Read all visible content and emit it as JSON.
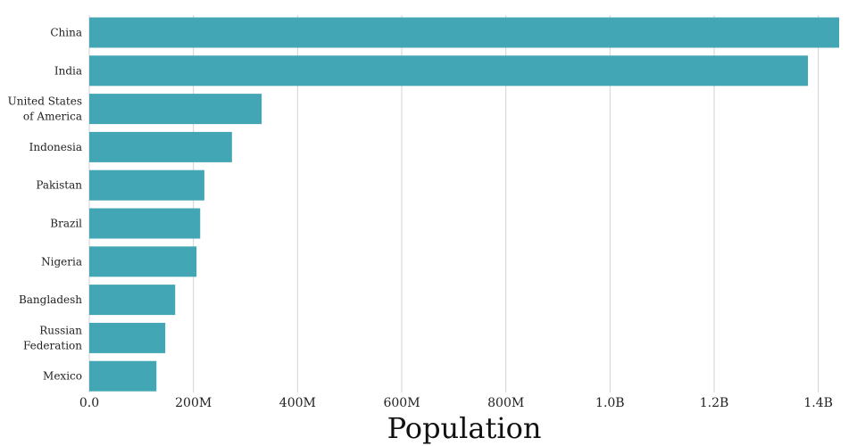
{
  "chart_data": {
    "type": "bar",
    "orientation": "horizontal",
    "categories": [
      "China",
      "India",
      "United States of America",
      "Indonesia",
      "Pakistan",
      "Brazil",
      "Nigeria",
      "Bangladesh",
      "Russian Federation",
      "Mexico"
    ],
    "category_label_lines": [
      [
        "China"
      ],
      [
        "India"
      ],
      [
        "United States",
        "of America"
      ],
      [
        "Indonesia"
      ],
      [
        "Pakistan"
      ],
      [
        "Brazil"
      ],
      [
        "Nigeria"
      ],
      [
        "Bangladesh"
      ],
      [
        "Russian",
        "Federation"
      ],
      [
        "Mexico"
      ]
    ],
    "values": [
      1440000000,
      1380000000,
      331000000,
      274000000,
      221000000,
      213000000,
      206000000,
      165000000,
      146000000,
      129000000
    ],
    "xlabel": "Population",
    "ylabel": "",
    "xlim": [
      0,
      1440000000
    ],
    "x_ticks": [
      0,
      200000000,
      400000000,
      600000000,
      800000000,
      1000000000,
      1200000000,
      1400000000
    ],
    "x_tick_labels": [
      "0.0",
      "200M",
      "400M",
      "600M",
      "800M",
      "1.0B",
      "1.2B",
      "1.4B"
    ],
    "grid": "vertical",
    "bar_color": "#43a6b5"
  }
}
